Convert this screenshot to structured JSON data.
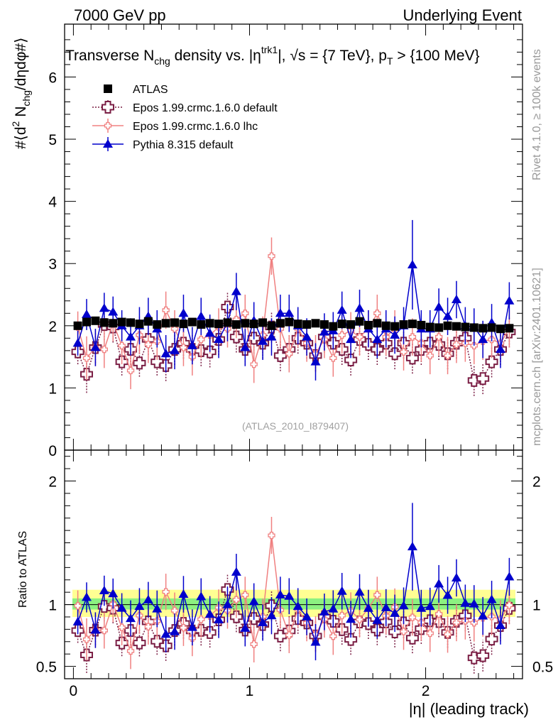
{
  "header": {
    "left": "7000 GeV pp",
    "right": "Underlying Event"
  },
  "side_labels": {
    "rivet": "Rivet 4.1.0, ≥ 100k events",
    "mcplots": "mcplots.cern.ch [arXiv:2401.10621]"
  },
  "chart_data": {
    "type": "scatter",
    "title": "Transverse N_chg density vs. |η^trk1|, √s = {7 TeV}, p_T > {100 MeV}",
    "title_parts": {
      "a": "Transverse N",
      "a_sub": "chg",
      "b": " density vs. |η",
      "b_sup": "trk1",
      "c": "|, ",
      "sqrt": "√",
      "d": "s = {7 TeV}, p",
      "d_sub": "T",
      "e": " > {100 MeV}"
    },
    "ylabel_parts": {
      "a": "#⟨d",
      "a_sup": "2",
      "b": " N",
      "b_sub": "chg",
      "c": "/dηdφ#⟩"
    },
    "xlabel": "|η| (leading track)",
    "ratio_ylabel": "Ratio to ATLAS",
    "watermark": "(ATLAS_2010_I879407)",
    "xlim": [
      -0.05,
      2.55
    ],
    "ylim": [
      0,
      6.85
    ],
    "ratio_ylim": [
      0.4,
      2.25
    ],
    "xticks": [
      0,
      1,
      2
    ],
    "yticks": [
      0,
      1,
      2,
      3,
      4,
      5,
      6
    ],
    "ratio_yticks": [
      0.5,
      1,
      2
    ],
    "x": [
      0.025,
      0.075,
      0.125,
      0.175,
      0.225,
      0.275,
      0.325,
      0.375,
      0.425,
      0.475,
      0.525,
      0.575,
      0.625,
      0.675,
      0.725,
      0.775,
      0.825,
      0.875,
      0.925,
      0.975,
      1.025,
      1.075,
      1.125,
      1.175,
      1.225,
      1.275,
      1.325,
      1.375,
      1.425,
      1.475,
      1.525,
      1.575,
      1.625,
      1.675,
      1.725,
      1.775,
      1.825,
      1.875,
      1.925,
      1.975,
      2.025,
      2.075,
      2.125,
      2.175,
      2.225,
      2.275,
      2.325,
      2.375,
      2.425,
      2.475
    ],
    "series": [
      {
        "name": "ATLAS",
        "color": "#000000",
        "values": [
          2.0,
          2.06,
          2.08,
          2.05,
          2.04,
          2.06,
          2.05,
          2.03,
          2.07,
          2.02,
          2.04,
          2.05,
          2.03,
          2.06,
          2.02,
          2.04,
          2.03,
          2.05,
          2.02,
          2.04,
          2.03,
          2.05,
          2.0,
          2.04,
          2.06,
          2.03,
          2.02,
          2.04,
          2.02,
          1.99,
          2.03,
          2.02,
          2.07,
          2.01,
          2.04,
          2.0,
          1.99,
          2.02,
          2.03,
          2.01,
          1.98,
          1.97,
          2.0,
          1.99,
          1.98,
          1.97,
          1.96,
          1.97,
          1.95,
          1.96
        ],
        "errors": [
          0.05,
          0.05,
          0.05,
          0.05,
          0.05,
          0.05,
          0.05,
          0.05,
          0.05,
          0.05,
          0.05,
          0.05,
          0.05,
          0.05,
          0.05,
          0.05,
          0.05,
          0.05,
          0.05,
          0.05,
          0.05,
          0.05,
          0.05,
          0.05,
          0.05,
          0.05,
          0.05,
          0.05,
          0.05,
          0.05,
          0.05,
          0.05,
          0.05,
          0.05,
          0.05,
          0.05,
          0.05,
          0.05,
          0.05,
          0.05,
          0.05,
          0.05,
          0.05,
          0.05,
          0.05,
          0.05,
          0.05,
          0.05,
          0.05,
          0.05
        ]
      },
      {
        "name": "Epos 1.99.crmc.1.6.0 default",
        "color": "#7b1f45",
        "values": [
          1.58,
          1.22,
          1.65,
          2.02,
          1.98,
          1.42,
          1.62,
          1.4,
          1.78,
          1.42,
          1.36,
          1.62,
          1.72,
          1.62,
          1.6,
          1.58,
          1.78,
          2.3,
          1.82,
          1.62,
          1.8,
          1.72,
          1.98,
          1.52,
          1.62,
          1.8,
          1.72,
          1.52,
          1.82,
          1.72,
          1.62,
          1.45,
          1.78,
          1.7,
          1.62,
          1.72,
          1.55,
          1.72,
          1.48,
          1.62,
          1.72,
          1.7,
          1.55,
          1.72,
          1.8,
          1.12,
          1.15,
          1.42,
          1.62,
          1.9
        ],
        "errors": [
          0.2,
          0.3,
          0.25,
          0.25,
          0.25,
          0.22,
          0.25,
          0.22,
          0.25,
          0.22,
          0.25,
          0.25,
          0.25,
          0.25,
          0.25,
          0.25,
          0.25,
          0.25,
          0.25,
          0.25,
          0.25,
          0.25,
          0.25,
          0.25,
          0.25,
          0.25,
          0.25,
          0.25,
          0.25,
          0.25,
          0.25,
          0.25,
          0.25,
          0.25,
          0.25,
          0.25,
          0.25,
          0.25,
          0.25,
          0.25,
          0.25,
          0.25,
          0.25,
          0.25,
          0.25,
          0.25,
          0.25,
          0.25,
          0.25,
          0.25
        ]
      },
      {
        "name": "Epos 1.99.crmc.1.6.0 lhc",
        "color": "#f08080",
        "values": [
          1.98,
          1.48,
          1.65,
          1.62,
          2.05,
          1.68,
          1.28,
          1.85,
          1.7,
          1.75,
          2.25,
          1.95,
          1.65,
          1.5,
          1.78,
          1.85,
          1.98,
          1.95,
          2.1,
          2.2,
          1.38,
          1.85,
          3.12,
          1.95,
          1.55,
          1.95,
          1.72,
          1.55,
          1.78,
          1.48,
          1.85,
          1.92,
          1.82,
          1.95,
          2.2,
          1.82,
          1.95,
          1.58,
          1.82,
          1.72,
          1.52,
          1.82,
          1.52,
          1.7,
          1.72,
          1.68,
          1.75,
          1.78,
          1.72,
          1.95
        ],
        "errors": [
          0.25,
          0.35,
          0.3,
          0.3,
          0.3,
          0.3,
          0.3,
          0.3,
          0.3,
          0.3,
          0.3,
          0.3,
          0.3,
          0.3,
          0.3,
          0.3,
          0.3,
          0.3,
          0.3,
          0.3,
          0.3,
          0.3,
          0.3,
          0.3,
          0.3,
          0.3,
          0.3,
          0.3,
          0.3,
          0.3,
          0.3,
          0.3,
          0.3,
          0.3,
          0.3,
          0.3,
          0.3,
          0.3,
          0.3,
          0.3,
          0.3,
          0.3,
          0.3,
          0.3,
          0.3,
          0.3,
          0.3,
          0.3,
          0.3,
          0.3
        ]
      },
      {
        "name": "Pythia 8.315 default",
        "color": "#0000cc",
        "values": [
          1.72,
          2.18,
          1.65,
          2.28,
          2.22,
          2.0,
          1.82,
          2.0,
          2.15,
          1.95,
          1.55,
          1.6,
          2.2,
          1.68,
          2.15,
          1.88,
          1.78,
          2.05,
          2.55,
          1.65,
          2.08,
          1.75,
          1.82,
          2.2,
          2.2,
          2.0,
          1.82,
          1.42,
          1.9,
          1.92,
          2.25,
          1.78,
          2.28,
          1.95,
          1.78,
          1.95,
          1.85,
          2.0,
          2.98,
          1.95,
          1.95,
          2.3,
          2.15,
          2.42,
          2.0,
          1.98,
          1.78,
          2.05,
          1.62,
          2.4
        ],
        "errors": [
          0.2,
          0.25,
          0.3,
          0.25,
          0.25,
          0.25,
          0.3,
          0.3,
          0.3,
          0.3,
          0.3,
          0.3,
          0.3,
          0.3,
          0.3,
          0.3,
          0.3,
          0.3,
          0.3,
          0.3,
          0.3,
          0.3,
          0.3,
          0.3,
          0.3,
          0.3,
          0.3,
          0.3,
          0.3,
          0.3,
          0.3,
          0.3,
          0.3,
          0.3,
          0.3,
          0.3,
          0.3,
          0.3,
          0.72,
          0.3,
          0.3,
          0.3,
          0.3,
          0.3,
          0.3,
          0.3,
          0.3,
          0.3,
          0.3,
          0.3
        ]
      }
    ]
  }
}
